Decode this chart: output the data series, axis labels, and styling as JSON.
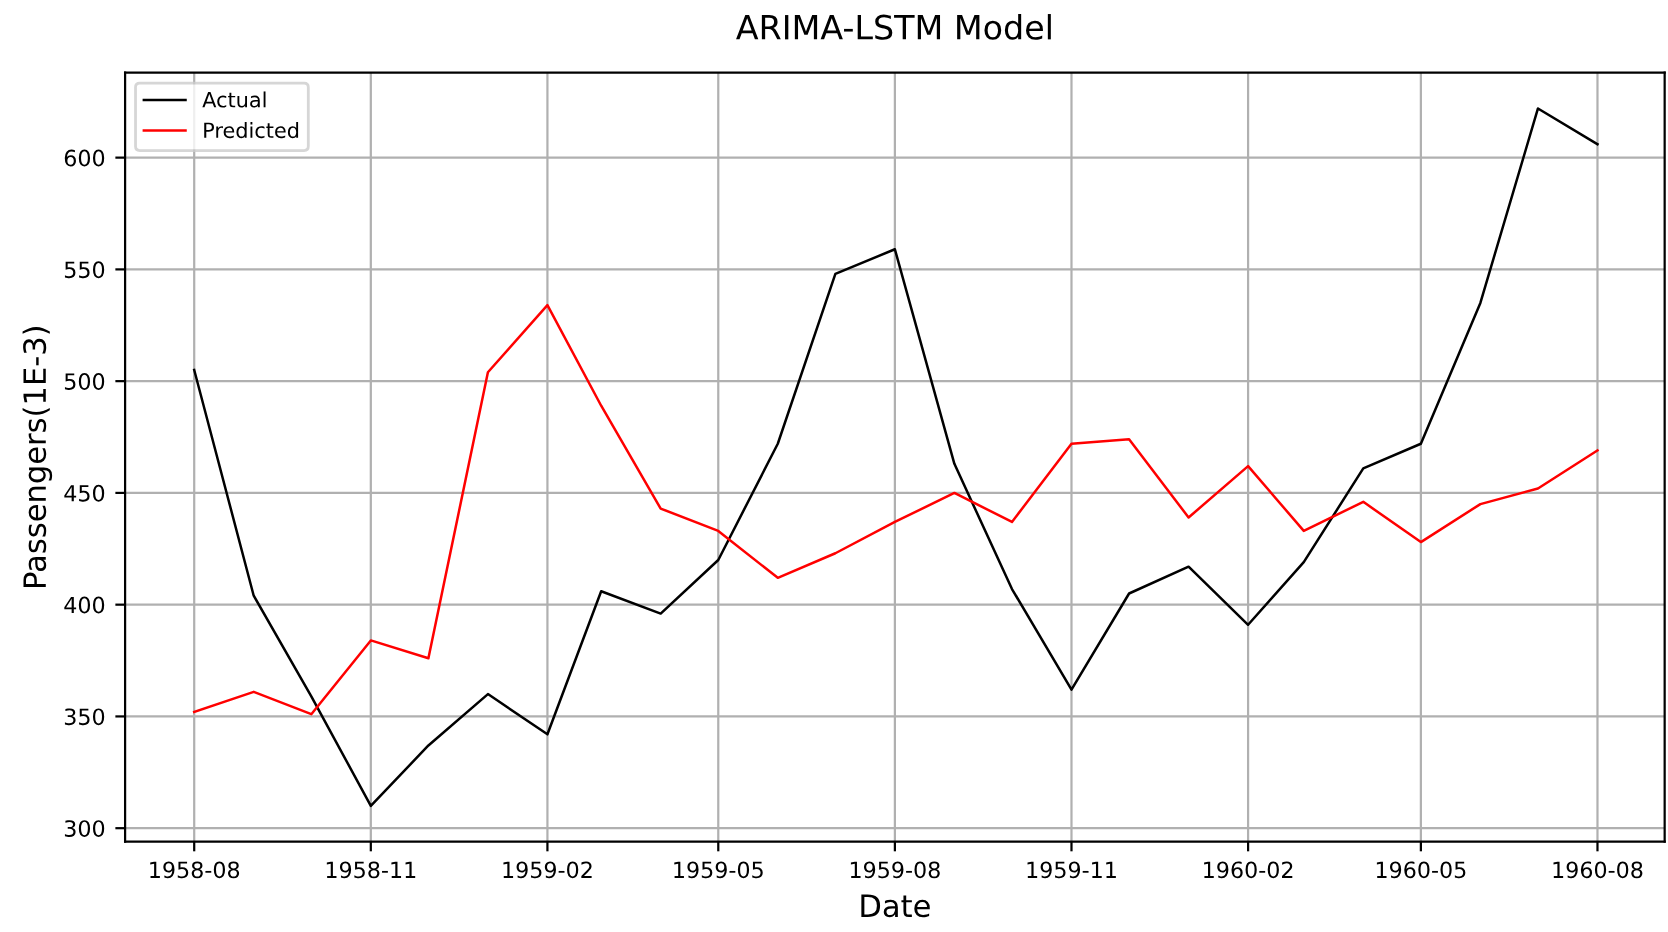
{
  "chart_data": {
    "type": "line",
    "title": "ARIMA-LSTM Model",
    "xlabel": "Date",
    "ylabel": "Passengers(1E-3)",
    "x": [
      "1958-08",
      "1958-09",
      "1958-10",
      "1958-11",
      "1958-12",
      "1959-01",
      "1959-02",
      "1959-03",
      "1959-04",
      "1959-05",
      "1959-06",
      "1959-07",
      "1959-08",
      "1959-09",
      "1959-10",
      "1959-11",
      "1959-12",
      "1960-01",
      "1960-02",
      "1960-03",
      "1960-04",
      "1960-05",
      "1960-06",
      "1960-07",
      "1960-08"
    ],
    "series": [
      {
        "name": "Actual",
        "color": "#000000",
        "values": [
          505,
          404,
          359,
          310,
          337,
          360,
          342,
          406,
          396,
          420,
          472,
          548,
          559,
          463,
          407,
          362,
          405,
          417,
          391,
          419,
          461,
          472,
          535,
          622,
          606
        ]
      },
      {
        "name": "Predicted",
        "color": "#ff0000",
        "values": [
          352,
          361,
          351,
          384,
          376,
          504,
          534,
          489,
          443,
          433,
          412,
          423,
          437,
          450,
          437,
          472,
          474,
          439,
          462,
          433,
          446,
          428,
          445,
          452,
          469
        ]
      }
    ],
    "xlim": [
      "1958-06-26",
      "1960-09-05"
    ],
    "ylim": [
      294,
      638
    ],
    "xticks": [
      "1958-08",
      "1958-11",
      "1959-02",
      "1959-05",
      "1959-08",
      "1959-11",
      "1960-02",
      "1960-05",
      "1960-08"
    ],
    "yticks": [
      300,
      350,
      400,
      450,
      500,
      550,
      600
    ],
    "grid": true,
    "legend": "top left",
    "marker": "none",
    "line_style": "solid"
  }
}
